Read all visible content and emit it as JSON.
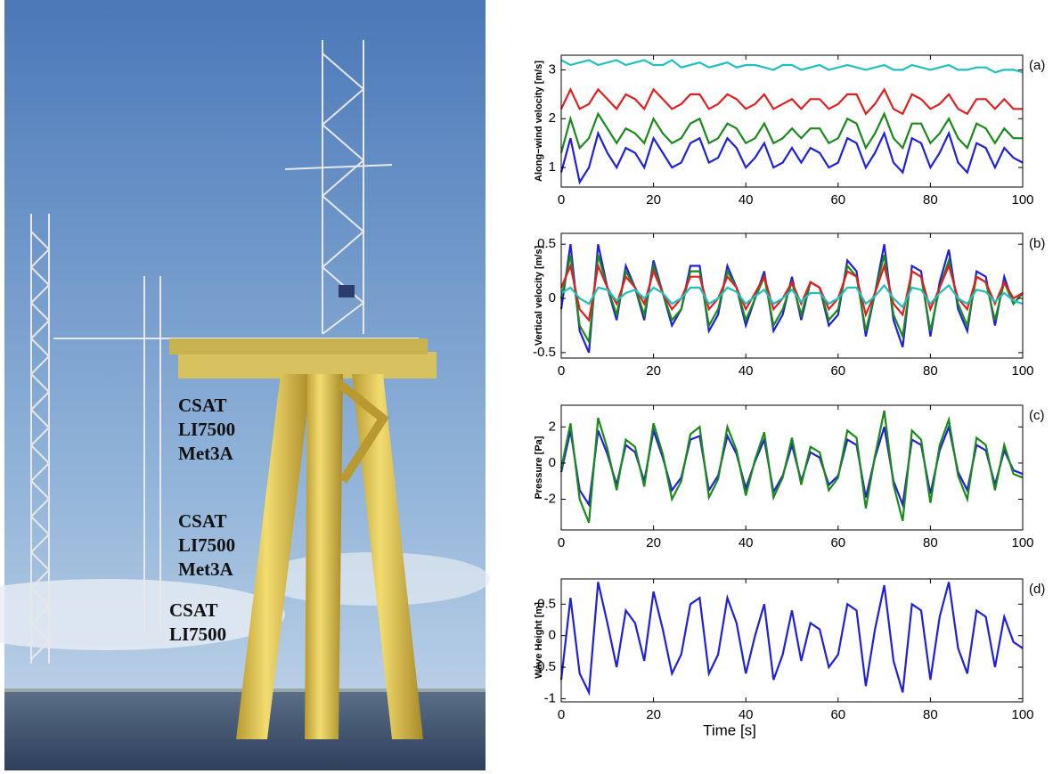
{
  "photo_labels": [
    [
      "CSAT",
      "LI7500",
      "Met3A"
    ],
    [
      "CSAT",
      "LI7500",
      "Met3A"
    ],
    [
      "CSAT",
      "LI7500"
    ]
  ],
  "chart_data": [
    {
      "type": "line",
      "panel_label": "(a)",
      "ylabel": "Along−wind velocity [m/s]",
      "x": [
        0,
        2,
        4,
        6,
        8,
        10,
        12,
        14,
        16,
        18,
        20,
        22,
        24,
        26,
        28,
        30,
        32,
        34,
        36,
        38,
        40,
        42,
        44,
        46,
        48,
        50,
        52,
        54,
        56,
        58,
        60,
        62,
        64,
        66,
        68,
        70,
        72,
        74,
        76,
        78,
        80,
        82,
        84,
        86,
        88,
        90,
        92,
        94,
        96,
        98,
        100
      ],
      "xlim": [
        0,
        100
      ],
      "xticks": [
        0,
        20,
        40,
        60,
        80,
        100
      ],
      "ylim": [
        0.6,
        3.3
      ],
      "yticks": [
        1,
        2,
        3
      ],
      "series": [
        {
          "color": "#2020d8",
          "values": [
            0.9,
            1.6,
            0.7,
            1.0,
            1.7,
            1.3,
            1.0,
            1.4,
            1.3,
            1.0,
            1.6,
            1.3,
            1.0,
            1.1,
            1.5,
            1.6,
            1.1,
            1.2,
            1.6,
            1.4,
            1.0,
            1.2,
            1.5,
            1.0,
            1.1,
            1.4,
            1.1,
            1.4,
            1.3,
            1.0,
            1.1,
            1.6,
            1.5,
            1.0,
            1.3,
            1.7,
            1.1,
            0.9,
            1.6,
            1.5,
            1.0,
            1.3,
            1.7,
            1.1,
            0.9,
            1.5,
            1.4,
            1.0,
            1.4,
            1.2,
            1.1
          ]
        },
        {
          "color": "#1a8a1a",
          "values": [
            1.3,
            2.0,
            1.4,
            1.6,
            2.1,
            1.8,
            1.5,
            1.8,
            1.7,
            1.5,
            2.0,
            1.7,
            1.5,
            1.6,
            1.9,
            2.0,
            1.5,
            1.6,
            1.9,
            1.8,
            1.5,
            1.6,
            1.9,
            1.5,
            1.6,
            1.8,
            1.6,
            1.8,
            1.8,
            1.5,
            1.6,
            2.0,
            1.9,
            1.4,
            1.7,
            2.1,
            1.6,
            1.4,
            1.9,
            1.9,
            1.5,
            1.7,
            2.0,
            1.6,
            1.4,
            1.9,
            1.8,
            1.5,
            1.8,
            1.6,
            1.6
          ]
        },
        {
          "color": "#e02020",
          "values": [
            2.2,
            2.6,
            2.2,
            2.3,
            2.6,
            2.4,
            2.2,
            2.5,
            2.4,
            2.2,
            2.6,
            2.4,
            2.2,
            2.3,
            2.5,
            2.5,
            2.2,
            2.3,
            2.5,
            2.4,
            2.2,
            2.3,
            2.5,
            2.2,
            2.3,
            2.4,
            2.2,
            2.4,
            2.4,
            2.2,
            2.3,
            2.5,
            2.5,
            2.1,
            2.3,
            2.6,
            2.2,
            2.1,
            2.5,
            2.4,
            2.2,
            2.3,
            2.5,
            2.2,
            2.1,
            2.4,
            2.4,
            2.2,
            2.4,
            2.2,
            2.2
          ]
        },
        {
          "color": "#20c0c0",
          "values": [
            3.2,
            3.1,
            3.15,
            3.2,
            3.1,
            3.15,
            3.2,
            3.1,
            3.15,
            3.2,
            3.1,
            3.1,
            3.2,
            3.05,
            3.1,
            3.15,
            3.05,
            3.1,
            3.15,
            3.05,
            3.1,
            3.1,
            3.05,
            3.0,
            3.1,
            3.1,
            3.0,
            3.05,
            3.1,
            3.0,
            3.05,
            3.1,
            3.05,
            3.0,
            3.05,
            3.1,
            3.0,
            3.0,
            3.1,
            3.05,
            3.0,
            3.05,
            3.1,
            3.0,
            3.0,
            3.05,
            3.05,
            2.95,
            3.0,
            3.0,
            2.95
          ]
        }
      ]
    },
    {
      "type": "line",
      "panel_label": "(b)",
      "ylabel": "Vertical velocity [m/s]",
      "x": [
        0,
        2,
        4,
        6,
        8,
        10,
        12,
        14,
        16,
        18,
        20,
        22,
        24,
        26,
        28,
        30,
        32,
        34,
        36,
        38,
        40,
        42,
        44,
        46,
        48,
        50,
        52,
        54,
        56,
        58,
        60,
        62,
        64,
        66,
        68,
        70,
        72,
        74,
        76,
        78,
        80,
        82,
        84,
        86,
        88,
        90,
        92,
        94,
        96,
        98,
        100
      ],
      "xlim": [
        0,
        100
      ],
      "xticks": [
        0,
        20,
        40,
        60,
        80,
        100
      ],
      "ylim": [
        -0.55,
        0.6
      ],
      "yticks": [
        -0.5,
        0,
        0.5
      ],
      "series": [
        {
          "color": "#2020d8",
          "values": [
            -0.1,
            0.5,
            -0.3,
            -0.5,
            0.5,
            0.1,
            -0.2,
            0.3,
            0.1,
            -0.2,
            0.35,
            0.05,
            -0.25,
            -0.1,
            0.3,
            0.3,
            -0.3,
            -0.15,
            0.3,
            0.1,
            -0.25,
            0.0,
            0.25,
            -0.3,
            -0.15,
            0.2,
            -0.2,
            0.15,
            0.1,
            -0.25,
            -0.15,
            0.35,
            0.25,
            -0.35,
            0.05,
            0.5,
            -0.2,
            -0.45,
            0.3,
            0.25,
            -0.35,
            0.15,
            0.45,
            -0.1,
            -0.3,
            0.25,
            0.2,
            -0.25,
            0.2,
            -0.05,
            0.05
          ]
        },
        {
          "color": "#1a8a1a",
          "values": [
            0.0,
            0.4,
            -0.25,
            -0.4,
            0.4,
            0.1,
            -0.15,
            0.25,
            0.1,
            -0.15,
            0.3,
            0.05,
            -0.2,
            -0.1,
            0.25,
            0.25,
            -0.25,
            -0.1,
            0.25,
            0.1,
            -0.2,
            0.0,
            0.2,
            -0.25,
            -0.1,
            0.15,
            -0.15,
            0.15,
            0.1,
            -0.2,
            -0.1,
            0.3,
            0.2,
            -0.3,
            0.05,
            0.4,
            -0.15,
            -0.35,
            0.25,
            0.2,
            -0.3,
            0.1,
            0.35,
            -0.05,
            -0.25,
            0.2,
            0.15,
            -0.2,
            0.15,
            -0.05,
            0.05
          ]
        },
        {
          "color": "#e02020",
          "values": [
            0.1,
            0.3,
            -0.1,
            -0.2,
            0.3,
            0.1,
            -0.05,
            0.2,
            0.1,
            -0.05,
            0.25,
            0.05,
            -0.1,
            0.0,
            0.2,
            0.2,
            -0.1,
            0.0,
            0.2,
            0.1,
            -0.1,
            0.05,
            0.2,
            -0.1,
            0.0,
            0.15,
            -0.05,
            0.15,
            0.1,
            -0.1,
            0.0,
            0.25,
            0.2,
            -0.15,
            0.05,
            0.3,
            -0.05,
            -0.15,
            0.25,
            0.2,
            -0.1,
            0.1,
            0.3,
            0.0,
            -0.1,
            0.2,
            0.15,
            -0.05,
            0.15,
            0.0,
            0.05
          ]
        },
        {
          "color": "#20c0c0",
          "values": [
            0.05,
            0.1,
            0.0,
            -0.05,
            0.1,
            0.08,
            -0.02,
            0.05,
            0.08,
            0.0,
            0.1,
            0.05,
            -0.05,
            0.0,
            0.1,
            0.1,
            -0.05,
            0.0,
            0.1,
            0.06,
            -0.05,
            0.02,
            0.08,
            -0.05,
            0.0,
            0.08,
            -0.03,
            0.05,
            0.05,
            -0.05,
            0.0,
            0.1,
            0.1,
            -0.05,
            0.02,
            0.12,
            0.0,
            -0.08,
            0.1,
            0.08,
            -0.05,
            0.05,
            0.12,
            0.0,
            -0.05,
            0.08,
            0.06,
            -0.03,
            0.05,
            -0.02,
            -0.05
          ]
        }
      ]
    },
    {
      "type": "line",
      "panel_label": "(c)",
      "ylabel": "Pressure [Pa]",
      "x": [
        0,
        2,
        4,
        6,
        8,
        10,
        12,
        14,
        16,
        18,
        20,
        22,
        24,
        26,
        28,
        30,
        32,
        34,
        36,
        38,
        40,
        42,
        44,
        46,
        48,
        50,
        52,
        54,
        56,
        58,
        60,
        62,
        64,
        66,
        68,
        70,
        72,
        74,
        76,
        78,
        80,
        82,
        84,
        86,
        88,
        90,
        92,
        94,
        96,
        98,
        100
      ],
      "xlim": [
        0,
        100
      ],
      "xticks": [
        0,
        20,
        40,
        60,
        80,
        100
      ],
      "ylim": [
        -3.7,
        3.2
      ],
      "yticks": [
        -2,
        0,
        2
      ],
      "series": [
        {
          "color": "#2020d8",
          "values": [
            -0.5,
            1.8,
            -1.5,
            -2.3,
            1.8,
            0.5,
            -1.2,
            1.0,
            0.6,
            -1.0,
            1.8,
            0.3,
            -1.5,
            -0.8,
            1.3,
            1.5,
            -1.5,
            -0.7,
            1.5,
            0.5,
            -1.4,
            0.1,
            1.3,
            -1.6,
            -0.7,
            1.0,
            -1.0,
            0.6,
            0.3,
            -1.2,
            -0.7,
            1.3,
            1.0,
            -1.9,
            0.3,
            2.0,
            -1.0,
            -2.3,
            1.3,
            1.0,
            -1.7,
            0.7,
            2.0,
            -0.5,
            -1.5,
            1.0,
            0.7,
            -1.2,
            0.7,
            -0.4,
            -0.6
          ]
        },
        {
          "color": "#1a8a1a",
          "values": [
            -0.3,
            2.2,
            -2.0,
            -3.3,
            2.5,
            0.8,
            -1.5,
            1.3,
            0.9,
            -1.3,
            2.2,
            0.5,
            -2.0,
            -1.0,
            1.6,
            2.0,
            -1.9,
            -0.9,
            2.0,
            0.7,
            -1.8,
            0.2,
            1.7,
            -1.9,
            -0.8,
            1.4,
            -1.2,
            0.9,
            0.6,
            -1.5,
            -0.8,
            1.8,
            1.4,
            -2.5,
            0.4,
            2.9,
            -1.2,
            -3.2,
            1.8,
            1.3,
            -2.2,
            1.0,
            2.4,
            -0.7,
            -2.0,
            1.4,
            1.0,
            -1.5,
            1.0,
            -0.6,
            -0.8
          ]
        }
      ]
    },
    {
      "type": "line",
      "panel_label": "(d)",
      "ylabel": "Wave Height [m]",
      "xlabel": "Time [s]",
      "x": [
        0,
        2,
        4,
        6,
        8,
        10,
        12,
        14,
        16,
        18,
        20,
        22,
        24,
        26,
        28,
        30,
        32,
        34,
        36,
        38,
        40,
        42,
        44,
        46,
        48,
        50,
        52,
        54,
        56,
        58,
        60,
        62,
        64,
        66,
        68,
        70,
        72,
        74,
        76,
        78,
        80,
        82,
        84,
        86,
        88,
        90,
        92,
        94,
        96,
        98,
        100
      ],
      "xlim": [
        0,
        100
      ],
      "xticks": [
        0,
        20,
        40,
        60,
        80,
        100
      ],
      "ylim": [
        -1.05,
        0.9
      ],
      "yticks": [
        -1,
        -0.5,
        0,
        0.5
      ],
      "series": [
        {
          "color": "#2020d8",
          "values": [
            -0.7,
            0.6,
            -0.6,
            -0.9,
            0.85,
            0.2,
            -0.5,
            0.4,
            0.2,
            -0.4,
            0.7,
            0.1,
            -0.6,
            -0.3,
            0.5,
            0.6,
            -0.6,
            -0.3,
            0.6,
            0.2,
            -0.6,
            0.0,
            0.5,
            -0.7,
            -0.3,
            0.4,
            -0.4,
            0.2,
            0.1,
            -0.5,
            -0.3,
            0.5,
            0.4,
            -0.8,
            0.1,
            0.8,
            -0.4,
            -0.9,
            0.5,
            0.4,
            -0.7,
            0.3,
            0.85,
            -0.2,
            -0.6,
            0.4,
            0.3,
            -0.5,
            0.3,
            -0.1,
            -0.2
          ]
        }
      ]
    }
  ]
}
